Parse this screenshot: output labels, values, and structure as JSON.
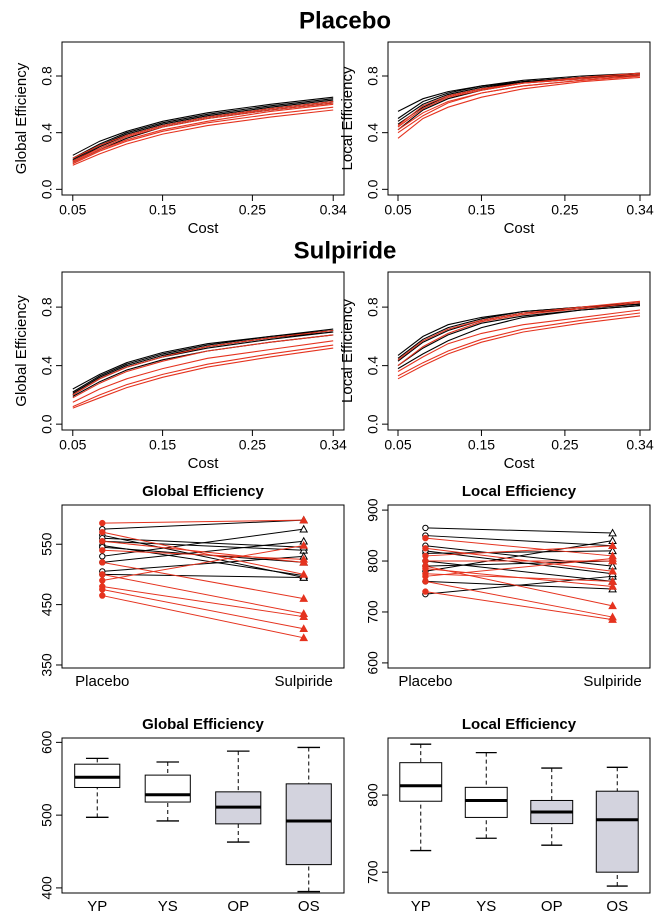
{
  "headings": [
    "Placebo",
    "Sulpiride"
  ],
  "chart_data": [
    {
      "type": "line",
      "xlabel": "Cost",
      "ylabel": "Global Efficiency",
      "x": [
        0.05,
        0.08,
        0.11,
        0.15,
        0.2,
        0.27,
        0.34
      ],
      "xlim": [
        0.038,
        0.352
      ],
      "xticks": [
        0.05,
        0.15,
        0.25,
        0.34
      ],
      "ylim": [
        -0.04,
        1.04
      ],
      "yticks": [
        {
          "value": 0,
          "label": "0.0"
        },
        0.4,
        0.8
      ],
      "series": [
        {
          "color": "#000000",
          "values": [
            0.22,
            0.32,
            0.4,
            0.47,
            0.53,
            0.59,
            0.64
          ]
        },
        {
          "color": "#000000",
          "values": [
            0.2,
            0.3,
            0.38,
            0.45,
            0.51,
            0.57,
            0.62
          ]
        },
        {
          "color": "#000000",
          "values": [
            0.24,
            0.34,
            0.41,
            0.48,
            0.54,
            0.6,
            0.65
          ]
        },
        {
          "color": "#000000",
          "values": [
            0.19,
            0.28,
            0.36,
            0.44,
            0.5,
            0.56,
            0.61
          ]
        },
        {
          "color": "#000000",
          "values": [
            0.21,
            0.31,
            0.39,
            0.46,
            0.52,
            0.58,
            0.63
          ]
        },
        {
          "color": "#e5331f",
          "values": [
            0.18,
            0.27,
            0.34,
            0.41,
            0.47,
            0.53,
            0.58
          ]
        },
        {
          "color": "#e5331f",
          "values": [
            0.2,
            0.29,
            0.37,
            0.44,
            0.5,
            0.56,
            0.61
          ]
        },
        {
          "color": "#e5331f",
          "values": [
            0.17,
            0.25,
            0.32,
            0.39,
            0.45,
            0.51,
            0.56
          ]
        },
        {
          "color": "#e5331f",
          "values": [
            0.22,
            0.31,
            0.38,
            0.45,
            0.51,
            0.57,
            0.62
          ]
        },
        {
          "color": "#e5331f",
          "values": [
            0.19,
            0.28,
            0.35,
            0.42,
            0.48,
            0.55,
            0.6
          ]
        }
      ]
    },
    {
      "type": "line",
      "xlabel": "Cost",
      "ylabel": "Local Efficiency",
      "x": [
        0.05,
        0.08,
        0.11,
        0.15,
        0.2,
        0.27,
        0.34
      ],
      "xlim": [
        0.038,
        0.352
      ],
      "xticks": [
        0.05,
        0.15,
        0.25,
        0.34
      ],
      "ylim": [
        -0.04,
        1.04
      ],
      "yticks": [
        {
          "value": 0,
          "label": "0.0"
        },
        0.4,
        0.8
      ],
      "series": [
        {
          "color": "#000000",
          "values": [
            0.48,
            0.6,
            0.67,
            0.72,
            0.76,
            0.79,
            0.82
          ]
        },
        {
          "color": "#000000",
          "values": [
            0.55,
            0.64,
            0.69,
            0.73,
            0.77,
            0.8,
            0.82
          ]
        },
        {
          "color": "#000000",
          "values": [
            0.42,
            0.56,
            0.64,
            0.7,
            0.75,
            0.78,
            0.81
          ]
        },
        {
          "color": "#000000",
          "values": [
            0.46,
            0.58,
            0.66,
            0.71,
            0.76,
            0.79,
            0.81
          ]
        },
        {
          "color": "#000000",
          "values": [
            0.5,
            0.62,
            0.68,
            0.73,
            0.76,
            0.79,
            0.8
          ]
        },
        {
          "color": "#e5331f",
          "values": [
            0.4,
            0.52,
            0.61,
            0.68,
            0.73,
            0.77,
            0.8
          ]
        },
        {
          "color": "#e5331f",
          "values": [
            0.44,
            0.57,
            0.65,
            0.7,
            0.75,
            0.78,
            0.81
          ]
        },
        {
          "color": "#e5331f",
          "values": [
            0.36,
            0.5,
            0.58,
            0.65,
            0.71,
            0.76,
            0.79
          ]
        },
        {
          "color": "#e5331f",
          "values": [
            0.45,
            0.59,
            0.66,
            0.71,
            0.75,
            0.79,
            0.82
          ]
        },
        {
          "color": "#e5331f",
          "values": [
            0.42,
            0.54,
            0.62,
            0.68,
            0.73,
            0.77,
            0.8
          ]
        }
      ]
    },
    {
      "type": "line",
      "xlabel": "Cost",
      "ylabel": "Global Efficiency",
      "x": [
        0.05,
        0.08,
        0.11,
        0.15,
        0.2,
        0.27,
        0.34
      ],
      "xlim": [
        0.038,
        0.352
      ],
      "xticks": [
        0.05,
        0.15,
        0.25,
        0.34
      ],
      "ylim": [
        -0.04,
        1.04
      ],
      "yticks": [
        {
          "value": 0,
          "label": "0.0"
        },
        0.4,
        0.8
      ],
      "series": [
        {
          "color": "#000000",
          "values": [
            0.22,
            0.33,
            0.41,
            0.48,
            0.54,
            0.6,
            0.64
          ]
        },
        {
          "color": "#000000",
          "values": [
            0.2,
            0.31,
            0.39,
            0.46,
            0.52,
            0.58,
            0.63
          ]
        },
        {
          "color": "#000000",
          "values": [
            0.24,
            0.34,
            0.42,
            0.49,
            0.55,
            0.6,
            0.65
          ]
        },
        {
          "color": "#000000",
          "values": [
            0.19,
            0.29,
            0.37,
            0.44,
            0.5,
            0.56,
            0.61
          ]
        },
        {
          "color": "#000000",
          "values": [
            0.21,
            0.32,
            0.4,
            0.47,
            0.53,
            0.59,
            0.63
          ]
        },
        {
          "color": "#e5331f",
          "values": [
            0.12,
            0.2,
            0.27,
            0.34,
            0.41,
            0.48,
            0.54
          ]
        },
        {
          "color": "#e5331f",
          "values": [
            0.15,
            0.24,
            0.31,
            0.38,
            0.45,
            0.51,
            0.57
          ]
        },
        {
          "color": "#e5331f",
          "values": [
            0.18,
            0.28,
            0.36,
            0.43,
            0.5,
            0.56,
            0.61
          ]
        },
        {
          "color": "#e5331f",
          "values": [
            0.11,
            0.18,
            0.25,
            0.32,
            0.39,
            0.46,
            0.52
          ]
        },
        {
          "color": "#e5331f",
          "values": [
            0.2,
            0.31,
            0.39,
            0.46,
            0.53,
            0.59,
            0.64
          ]
        }
      ]
    },
    {
      "type": "line",
      "xlabel": "Cost",
      "ylabel": "Local Efficiency",
      "x": [
        0.05,
        0.08,
        0.11,
        0.15,
        0.2,
        0.27,
        0.34
      ],
      "xlim": [
        0.038,
        0.352
      ],
      "xticks": [
        0.05,
        0.15,
        0.25,
        0.34
      ],
      "ylim": [
        -0.04,
        1.04
      ],
      "yticks": [
        {
          "value": 0,
          "label": "0.0"
        },
        0.4,
        0.8
      ],
      "series": [
        {
          "color": "#000000",
          "values": [
            0.45,
            0.58,
            0.66,
            0.72,
            0.77,
            0.8,
            0.83
          ]
        },
        {
          "color": "#000000",
          "values": [
            0.4,
            0.52,
            0.61,
            0.69,
            0.74,
            0.78,
            0.81
          ]
        },
        {
          "color": "#000000",
          "values": [
            0.47,
            0.6,
            0.68,
            0.73,
            0.77,
            0.8,
            0.82
          ]
        },
        {
          "color": "#000000",
          "values": [
            0.38,
            0.48,
            0.57,
            0.66,
            0.73,
            0.78,
            0.81
          ]
        },
        {
          "color": "#000000",
          "values": [
            0.43,
            0.56,
            0.64,
            0.71,
            0.76,
            0.79,
            0.82
          ]
        },
        {
          "color": "#e5331f",
          "values": [
            0.33,
            0.42,
            0.5,
            0.58,
            0.65,
            0.71,
            0.76
          ]
        },
        {
          "color": "#e5331f",
          "values": [
            0.36,
            0.46,
            0.55,
            0.62,
            0.68,
            0.73,
            0.78
          ]
        },
        {
          "color": "#e5331f",
          "values": [
            0.4,
            0.53,
            0.62,
            0.7,
            0.75,
            0.79,
            0.83
          ]
        },
        {
          "color": "#e5331f",
          "values": [
            0.31,
            0.4,
            0.48,
            0.56,
            0.63,
            0.69,
            0.74
          ]
        },
        {
          "color": "#e5331f",
          "values": [
            0.44,
            0.57,
            0.65,
            0.71,
            0.76,
            0.8,
            0.84
          ]
        }
      ]
    },
    {
      "type": "paired",
      "title": "Global Efficiency",
      "categories": [
        "Placebo",
        "Sulpiride"
      ],
      "ylim": [
        345,
        615
      ],
      "yticks": [
        350,
        450,
        550
      ],
      "series": [
        {
          "color": "#000000",
          "values": [
            575,
            590
          ]
        },
        {
          "color": "#000000",
          "values": [
            555,
            540
          ]
        },
        {
          "color": "#000000",
          "values": [
            548,
            498
          ]
        },
        {
          "color": "#000000",
          "values": [
            520,
            555
          ]
        },
        {
          "color": "#000000",
          "values": [
            505,
            530
          ]
        },
        {
          "color": "#000000",
          "values": [
            565,
            495
          ]
        },
        {
          "color": "#000000",
          "values": [
            545,
            520
          ]
        },
        {
          "color": "#000000",
          "values": [
            530,
            575
          ]
        },
        {
          "color": "#000000",
          "values": [
            500,
            495
          ]
        },
        {
          "color": "#000000",
          "values": [
            560,
            545
          ]
        },
        {
          "color": "#e5331f",
          "values": [
            585,
            590
          ]
        },
        {
          "color": "#e5331f",
          "values": [
            570,
            500
          ]
        },
        {
          "color": "#e5331f",
          "values": [
            540,
            525
          ]
        },
        {
          "color": "#e5331f",
          "values": [
            520,
            460
          ]
        },
        {
          "color": "#e5331f",
          "values": [
            500,
            435
          ]
        },
        {
          "color": "#e5331f",
          "values": [
            480,
            430
          ]
        },
        {
          "color": "#e5331f",
          "values": [
            465,
            395
          ]
        },
        {
          "color": "#e5331f",
          "values": [
            490,
            548
          ]
        },
        {
          "color": "#e5331f",
          "values": [
            555,
            520
          ]
        },
        {
          "color": "#e5331f",
          "values": [
            475,
            410
          ]
        }
      ]
    },
    {
      "type": "paired",
      "title": "Local Efficiency",
      "categories": [
        "Placebo",
        "Sulpiride"
      ],
      "ylim": [
        590,
        910
      ],
      "yticks": [
        600,
        700,
        800,
        900
      ],
      "series": [
        {
          "color": "#000000",
          "values": [
            865,
            855
          ]
        },
        {
          "color": "#000000",
          "values": [
            850,
            830
          ]
        },
        {
          "color": "#000000",
          "values": [
            830,
            790
          ]
        },
        {
          "color": "#000000",
          "values": [
            815,
            820
          ]
        },
        {
          "color": "#000000",
          "values": [
            800,
            760
          ]
        },
        {
          "color": "#000000",
          "values": [
            790,
            800
          ]
        },
        {
          "color": "#000000",
          "values": [
            780,
            840
          ]
        },
        {
          "color": "#000000",
          "values": [
            760,
            745
          ]
        },
        {
          "color": "#000000",
          "values": [
            735,
            770
          ]
        },
        {
          "color": "#000000",
          "values": [
            820,
            775
          ]
        },
        {
          "color": "#e5331f",
          "values": [
            845,
            810
          ]
        },
        {
          "color": "#e5331f",
          "values": [
            825,
            780
          ]
        },
        {
          "color": "#e5331f",
          "values": [
            800,
            800
          ]
        },
        {
          "color": "#e5331f",
          "values": [
            790,
            712
          ]
        },
        {
          "color": "#e5331f",
          "values": [
            775,
            760
          ]
        },
        {
          "color": "#e5331f",
          "values": [
            760,
            690
          ]
        },
        {
          "color": "#e5331f",
          "values": [
            740,
            685
          ]
        },
        {
          "color": "#e5331f",
          "values": [
            810,
            830
          ]
        },
        {
          "color": "#e5331f",
          "values": [
            785,
            750
          ]
        },
        {
          "color": "#e5331f",
          "values": [
            770,
            805
          ]
        }
      ]
    },
    {
      "type": "box",
      "title": "Global Efficiency",
      "categories": [
        "YP",
        "YS",
        "OP",
        "OS"
      ],
      "colors": [
        "#ffffff",
        "#ffffff",
        "#d3d3de",
        "#d3d3de"
      ],
      "ylim": [
        393,
        606
      ],
      "yticks": [
        400,
        500,
        600
      ],
      "boxes": [
        {
          "min": 497,
          "q1": 538,
          "median": 552,
          "q3": 570,
          "max": 578
        },
        {
          "min": 492,
          "q1": 518,
          "median": 528,
          "q3": 555,
          "max": 573
        },
        {
          "min": 463,
          "q1": 488,
          "median": 511,
          "q3": 532,
          "max": 588
        },
        {
          "min": 395,
          "q1": 432,
          "median": 492,
          "q3": 543,
          "max": 593
        }
      ]
    },
    {
      "type": "box",
      "title": "Local Efficiency",
      "categories": [
        "YP",
        "YS",
        "OP",
        "OS"
      ],
      "colors": [
        "#ffffff",
        "#ffffff",
        "#d3d3de",
        "#d3d3de"
      ],
      "ylim": [
        673,
        874
      ],
      "yticks": [
        700,
        800
      ],
      "boxes": [
        {
          "min": 728,
          "q1": 792,
          "median": 812,
          "q3": 842,
          "max": 866
        },
        {
          "min": 744,
          "q1": 771,
          "median": 793,
          "q3": 810,
          "max": 855
        },
        {
          "min": 735,
          "q1": 763,
          "median": 778,
          "q3": 793,
          "max": 835
        },
        {
          "min": 682,
          "q1": 700,
          "median": 768,
          "q3": 805,
          "max": 836
        }
      ]
    }
  ]
}
